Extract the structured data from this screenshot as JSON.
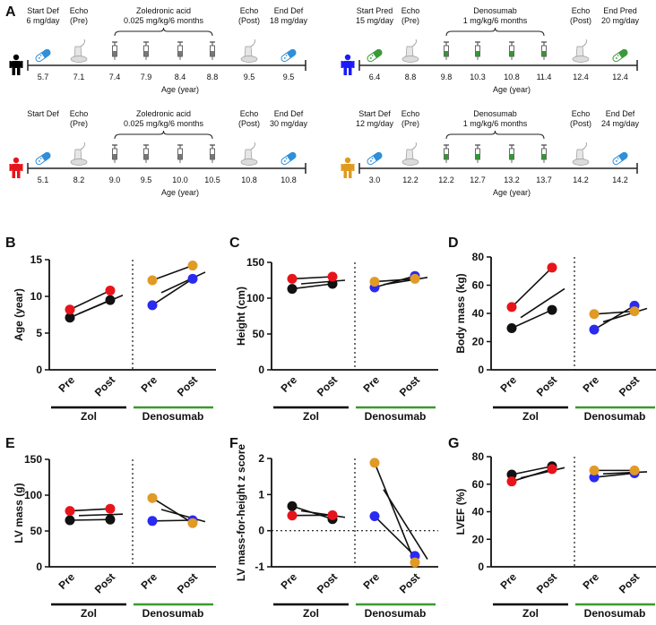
{
  "figure": {
    "panel_letters": [
      "A",
      "B",
      "C",
      "D",
      "E",
      "F",
      "G"
    ]
  },
  "timelines": [
    {
      "patient_color": "#000000",
      "treatment_start": {
        "label1": "Start Def",
        "label2": "6 mg/day",
        "value": "5.7"
      },
      "echo_pre": {
        "label1": "Echo",
        "label2": "(Pre)",
        "value": "7.1"
      },
      "drug": {
        "label1": "Zoledronic acid",
        "label2": "0.025 mg/kg/6 months",
        "values": [
          "7.4",
          "7.9",
          "8.4",
          "8.8"
        ]
      },
      "echo_post": {
        "label1": "Echo",
        "label2": "(Post)",
        "value": "9.5"
      },
      "treatment_end": {
        "label1": "End Def",
        "label2": "18 mg/day",
        "value": "9.5"
      },
      "axis_label": "Age (year)",
      "pill_color": "#2f8fd8",
      "syringe_color": "#777777"
    },
    {
      "patient_color": "#1a1aff",
      "treatment_start": {
        "label1": "Start Pred",
        "label2": "15 mg/day",
        "value": "6.4"
      },
      "echo_pre": {
        "label1": "Echo",
        "label2": "(Pre)",
        "value": "8.8"
      },
      "drug": {
        "label1": "Denosumab",
        "label2": "1 mg/kg/6 months",
        "values": [
          "9.8",
          "10.3",
          "10.8",
          "11.4"
        ]
      },
      "echo_post": {
        "label1": "Echo",
        "label2": "(Post)",
        "value": "12.4"
      },
      "treatment_end": {
        "label1": "End Pred",
        "label2": "20 mg/day",
        "value": "12.4"
      },
      "axis_label": "Age (year)",
      "pill_color": "#3a9a3a",
      "syringe_color": "#2e9a2e"
    },
    {
      "patient_color": "#e8141c",
      "treatment_start": {
        "label1": "Start Def",
        "label2": "",
        "value": "5.1"
      },
      "echo_pre": {
        "label1": "Echo",
        "label2": "(Pre)",
        "value": "8.2"
      },
      "drug": {
        "label1": "Zoledronic acid",
        "label2": "0.025 mg/kg/6 months",
        "values": [
          "9.0",
          "9.5",
          "10.0",
          "10.5"
        ]
      },
      "echo_post": {
        "label1": "Echo",
        "label2": "(Post)",
        "value": "10.8"
      },
      "treatment_end": {
        "label1": "End Def",
        "label2": "30 mg/day",
        "value": "10.8"
      },
      "axis_label": "Age (year)",
      "pill_color": "#2f8fd8",
      "syringe_color": "#777777"
    },
    {
      "patient_color": "#e09a1e",
      "treatment_start": {
        "label1": "Start Def",
        "label2": "12 mg/day",
        "value": "3.0"
      },
      "echo_pre": {
        "label1": "Echo",
        "label2": "(Pre)",
        "value": "12.2"
      },
      "drug": {
        "label1": "Denosumab",
        "label2": "1 mg/kg/6 months",
        "values": [
          "12.2",
          "12.7",
          "13.2",
          "13.7"
        ]
      },
      "echo_post": {
        "label1": "Echo",
        "label2": "(Post)",
        "value": "14.2"
      },
      "treatment_end": {
        "label1": "End Def",
        "label2": "24 mg/day",
        "value": "14.2"
      },
      "axis_label": "Age (year)",
      "pill_color": "#2f8fd8",
      "syringe_color": "#2e9a2e"
    }
  ],
  "groups": {
    "zol_label": "Zol",
    "den_label": "Denosumab",
    "zol_bar_color": "#000000",
    "den_bar_color": "#3a9a2e",
    "timepoints": [
      "Pre",
      "Post"
    ]
  },
  "colors": {
    "black_patient": "#111111",
    "red_patient": "#e8141c",
    "blue_patient": "#2a2af0",
    "orange_patient": "#e09a26"
  },
  "chart_data": [
    {
      "panel": "B",
      "type": "scatter",
      "ylabel": "Age (year)",
      "ylim": [
        0,
        15
      ],
      "yticks": [
        "0",
        "5",
        "10",
        "15"
      ],
      "zero_line": false,
      "series": [
        {
          "color": "black",
          "group": "zol",
          "values": [
            7.1,
            9.5
          ]
        },
        {
          "color": "red",
          "group": "zol",
          "values": [
            8.2,
            10.8
          ]
        },
        {
          "color": "blue",
          "group": "den",
          "values": [
            8.8,
            12.4
          ]
        },
        {
          "color": "orange",
          "group": "den",
          "values": [
            12.2,
            14.2
          ]
        }
      ],
      "means": {
        "zol": [
          7.65,
          10.15
        ],
        "den": [
          10.5,
          13.3
        ]
      }
    },
    {
      "panel": "C",
      "type": "scatter",
      "ylabel": "Height (cm)",
      "ylim": [
        0,
        150
      ],
      "yticks": [
        "0",
        "50",
        "100",
        "150"
      ],
      "zero_line": false,
      "series": [
        {
          "color": "black",
          "group": "zol",
          "values": [
            113,
            120
          ]
        },
        {
          "color": "red",
          "group": "zol",
          "values": [
            127,
            130
          ]
        },
        {
          "color": "blue",
          "group": "den",
          "values": [
            115,
            131
          ]
        },
        {
          "color": "orange",
          "group": "den",
          "values": [
            123,
            127
          ]
        }
      ],
      "means": {
        "zol": [
          120,
          125
        ],
        "den": [
          119,
          129
        ]
      }
    },
    {
      "panel": "D",
      "type": "scatter",
      "ylabel": "Body mass (kg)",
      "ylim": [
        0,
        80
      ],
      "yticks": [
        "0",
        "20",
        "40",
        "60",
        "80"
      ],
      "zero_line": false,
      "series": [
        {
          "color": "black",
          "group": "zol",
          "values": [
            29.5,
            42.5
          ]
        },
        {
          "color": "red",
          "group": "zol",
          "values": [
            44.5,
            72.5
          ]
        },
        {
          "color": "blue",
          "group": "den",
          "values": [
            28.5,
            45.5
          ]
        },
        {
          "color": "orange",
          "group": "den",
          "values": [
            39.5,
            41.5
          ]
        }
      ],
      "means": {
        "zol": [
          37,
          57.5
        ],
        "den": [
          34,
          43.5
        ]
      }
    },
    {
      "panel": "E",
      "type": "scatter",
      "ylabel": "LV mass (g)",
      "ylim": [
        0,
        150
      ],
      "yticks": [
        "0",
        "50",
        "100",
        "150"
      ],
      "zero_line": false,
      "series": [
        {
          "color": "black",
          "group": "zol",
          "values": [
            65,
            66
          ]
        },
        {
          "color": "red",
          "group": "zol",
          "values": [
            78,
            81
          ]
        },
        {
          "color": "blue",
          "group": "den",
          "values": [
            64,
            65
          ]
        },
        {
          "color": "orange",
          "group": "den",
          "values": [
            96,
            61
          ]
        }
      ],
      "means": {
        "zol": [
          71.5,
          73.5
        ],
        "den": [
          80,
          63
        ]
      }
    },
    {
      "panel": "F",
      "type": "scatter",
      "ylabel": "LV mass-for-height z score",
      "ylim": [
        -1,
        2
      ],
      "yticks": [
        "-1",
        "0",
        "1",
        "2"
      ],
      "zero_line": true,
      "series": [
        {
          "color": "black",
          "group": "zol",
          "values": [
            0.68,
            0.32
          ]
        },
        {
          "color": "red",
          "group": "zol",
          "values": [
            0.42,
            0.43
          ]
        },
        {
          "color": "blue",
          "group": "den",
          "values": [
            0.4,
            -0.7
          ]
        },
        {
          "color": "orange",
          "group": "den",
          "values": [
            1.88,
            -0.88
          ]
        }
      ],
      "means": {
        "zol": [
          0.55,
          0.37
        ],
        "den": [
          1.14,
          -0.79
        ]
      }
    },
    {
      "panel": "G",
      "type": "scatter",
      "ylabel": "LVEF (%)",
      "ylim": [
        0,
        80
      ],
      "yticks": [
        "0",
        "20",
        "40",
        "60",
        "80"
      ],
      "zero_line": false,
      "series": [
        {
          "color": "black",
          "group": "zol",
          "values": [
            67,
            73
          ]
        },
        {
          "color": "red",
          "group": "zol",
          "values": [
            62,
            71
          ]
        },
        {
          "color": "blue",
          "group": "den",
          "values": [
            65,
            68
          ]
        },
        {
          "color": "orange",
          "group": "den",
          "values": [
            70,
            70
          ]
        }
      ],
      "means": {
        "zol": [
          64.5,
          72
        ],
        "den": [
          67.5,
          69
        ]
      }
    }
  ]
}
